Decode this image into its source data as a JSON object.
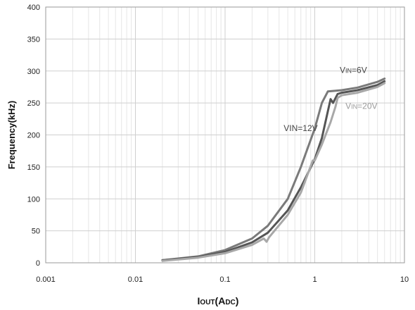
{
  "chart_data": {
    "type": "line",
    "x_scale": "log",
    "xlim": [
      0.001,
      10
    ],
    "ylim": [
      0,
      400
    ],
    "x_ticks": [
      "0.001",
      "0.01",
      "0.1",
      "1",
      "10"
    ],
    "y_ticks": [
      "0",
      "50",
      "100",
      "150",
      "200",
      "250",
      "300",
      "350",
      "400"
    ],
    "xlabel": "IOUT(ADC)",
    "ylabel": "Frequency(kHz)",
    "grid": true,
    "series": [
      {
        "name": "VIN=6V",
        "color": "#7a7a7a",
        "points": [
          [
            0.02,
            4
          ],
          [
            0.05,
            10
          ],
          [
            0.1,
            20
          ],
          [
            0.2,
            38
          ],
          [
            0.3,
            58
          ],
          [
            0.5,
            100
          ],
          [
            0.7,
            150
          ],
          [
            1.0,
            210
          ],
          [
            1.2,
            250
          ],
          [
            1.4,
            268
          ],
          [
            2.0,
            270
          ],
          [
            3.0,
            274
          ],
          [
            5.0,
            283
          ],
          [
            6.0,
            288
          ]
        ]
      },
      {
        "name": "VIN=12V",
        "color": "#555555",
        "points": [
          [
            0.02,
            4
          ],
          [
            0.05,
            9
          ],
          [
            0.1,
            17
          ],
          [
            0.2,
            32
          ],
          [
            0.3,
            47
          ],
          [
            0.5,
            82
          ],
          [
            0.7,
            118
          ],
          [
            1.0,
            162
          ],
          [
            1.2,
            195
          ],
          [
            1.4,
            237
          ],
          [
            1.5,
            256
          ],
          [
            1.6,
            250
          ],
          [
            1.8,
            264
          ],
          [
            2.0,
            266
          ],
          [
            3.0,
            270
          ],
          [
            5.0,
            278
          ],
          [
            6.0,
            284
          ]
        ]
      },
      {
        "name": "VIN=20V",
        "color": "#a8a8a8",
        "points": [
          [
            0.02,
            3
          ],
          [
            0.05,
            8
          ],
          [
            0.1,
            15
          ],
          [
            0.2,
            28
          ],
          [
            0.27,
            38
          ],
          [
            0.29,
            33
          ],
          [
            0.31,
            40
          ],
          [
            0.5,
            75
          ],
          [
            0.7,
            110
          ],
          [
            0.95,
            160
          ],
          [
            1.0,
            160
          ],
          [
            1.2,
            185
          ],
          [
            1.5,
            220
          ],
          [
            1.7,
            244
          ],
          [
            1.8,
            258
          ],
          [
            2.0,
            262
          ],
          [
            3.0,
            266
          ],
          [
            5.0,
            275
          ],
          [
            6.0,
            281
          ]
        ]
      }
    ],
    "annotations": [
      {
        "base": "V",
        "sub": "IN",
        "rest": "=6V",
        "x": 1.9,
        "y": 297,
        "color": "#444444"
      },
      {
        "base": "VIN=12V",
        "sub": "",
        "rest": "",
        "x": 0.45,
        "y": 206,
        "color": "#444444"
      },
      {
        "base": "V",
        "sub": "IN",
        "rest": "=20V",
        "x": 2.2,
        "y": 241,
        "color": "#9a9a9a"
      }
    ]
  }
}
